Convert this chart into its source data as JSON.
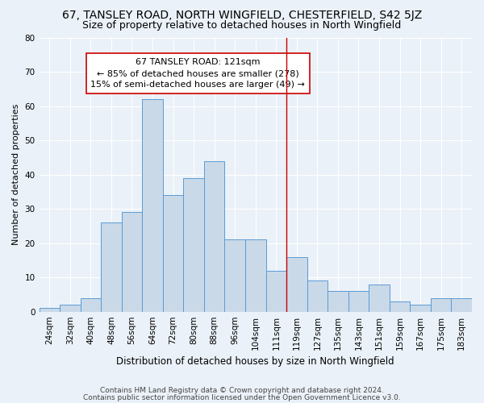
{
  "title": "67, TANSLEY ROAD, NORTH WINGFIELD, CHESTERFIELD, S42 5JZ",
  "subtitle": "Size of property relative to detached houses in North Wingfield",
  "xlabel": "Distribution of detached houses by size in North Wingfield",
  "ylabel": "Number of detached properties",
  "categories": [
    "24sqm",
    "32sqm",
    "40sqm",
    "48sqm",
    "56sqm",
    "64sqm",
    "72sqm",
    "80sqm",
    "88sqm",
    "96sqm",
    "104sqm",
    "111sqm",
    "119sqm",
    "127sqm",
    "135sqm",
    "143sqm",
    "151sqm",
    "159sqm",
    "167sqm",
    "175sqm",
    "183sqm"
  ],
  "values": [
    1,
    2,
    4,
    26,
    29,
    62,
    34,
    39,
    44,
    21,
    21,
    12,
    16,
    9,
    6,
    6,
    8,
    3,
    2,
    4,
    4
  ],
  "bar_color": "#c9d9e8",
  "bar_edge_color": "#5b9bd5",
  "vline_x_index": 12,
  "vline_color": "#cc0000",
  "annotation_text": "67 TANSLEY ROAD: 121sqm\n← 85% of detached houses are smaller (278)\n15% of semi-detached houses are larger (49) →",
  "annotation_box_color": "#ffffff",
  "annotation_box_edge_color": "#cc0000",
  "ylim": [
    0,
    80
  ],
  "yticks": [
    0,
    10,
    20,
    30,
    40,
    50,
    60,
    70,
    80
  ],
  "footer_line1": "Contains HM Land Registry data © Crown copyright and database right 2024.",
  "footer_line2": "Contains public sector information licensed under the Open Government Licence v3.0.",
  "bg_color": "#eaf1f8",
  "plot_bg_color": "#eaf1f8",
  "title_fontsize": 10,
  "subtitle_fontsize": 9,
  "xlabel_fontsize": 8.5,
  "ylabel_fontsize": 8,
  "tick_fontsize": 7.5,
  "footer_fontsize": 6.5,
  "annotation_fontsize": 8
}
